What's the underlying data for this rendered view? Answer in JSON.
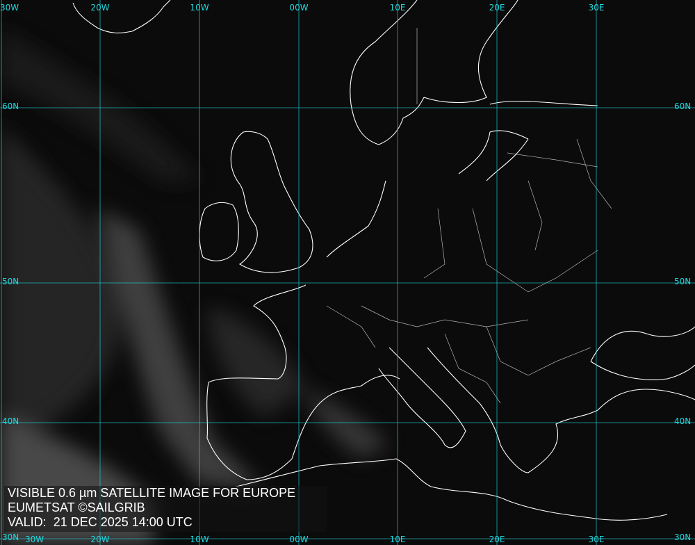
{
  "caption": {
    "line1": "VISIBLE 0.6 µm SATELLITE IMAGE FOR EUROPE",
    "line2": "EUMETSAT ©SAILGRIB",
    "line3": "VALID:  21 DEC 2025 14:00 UTC"
  },
  "grid": {
    "color": "#22d8e0",
    "longitudes": [
      "30W",
      "20W",
      "10W",
      "00W",
      "10E",
      "20E",
      "30E"
    ],
    "latitudes": [
      "60N",
      "50N",
      "40N",
      "30N"
    ]
  },
  "colors": {
    "coastline": "#ffffff",
    "background": "#0b0b0b",
    "cloud": "#8a8a8a"
  }
}
